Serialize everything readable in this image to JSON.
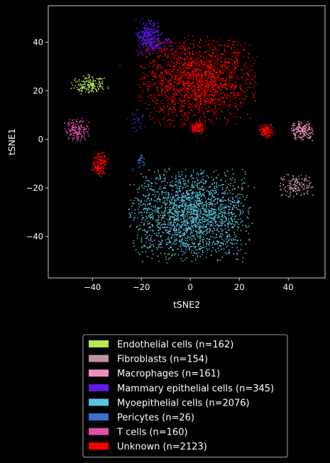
{
  "chart_data": {
    "type": "scatter",
    "title": "",
    "xlabel": "tSNE2",
    "ylabel": "tSNE1",
    "xlim": [
      -58,
      55
    ],
    "ylim": [
      -57,
      55
    ],
    "xticks": [
      -40,
      -20,
      0,
      20,
      40
    ],
    "yticks": [
      -40,
      -20,
      0,
      20,
      40
    ],
    "grid": false,
    "legend_position": "below plot",
    "background": "#000000",
    "series": [
      {
        "name": "Endothelial cells (n=162)",
        "color": "#b5e853",
        "count": 162,
        "clusters": [
          {
            "cx": -41,
            "cy": 22.5,
            "sx": 3.5,
            "sy": 1.8
          }
        ]
      },
      {
        "name": "Fibroblasts (n=154)",
        "color": "#c0949f",
        "count": 154,
        "clusters": [
          {
            "cx": 43.5,
            "cy": -19,
            "sx": 3.2,
            "sy": 2.2
          }
        ]
      },
      {
        "name": "Macrophages (n=161)",
        "color": "#ef8fbf",
        "count": 161,
        "clusters": [
          {
            "cx": 45.5,
            "cy": 3.5,
            "sx": 2.2,
            "sy": 2.0
          }
        ]
      },
      {
        "name": "Mammary epithelial cells (n=345)",
        "color": "#5d1be8",
        "count": 345,
        "clusters": [
          {
            "cx": -17,
            "cy": 42,
            "sx": 2.5,
            "sy": 3.5
          },
          {
            "cx": -22,
            "cy": 7,
            "sx": 1.8,
            "sy": 2.8
          },
          {
            "cx": -11,
            "cy": 40,
            "sx": 2.0,
            "sy": 1.5
          }
        ]
      },
      {
        "name": "Myoepithelial cells (n=2076)",
        "color": "#58c4dd",
        "count": 2076,
        "clusters": [
          {
            "cx": 0,
            "cy": -31,
            "sx": 11.5,
            "sy": 8.8
          }
        ]
      },
      {
        "name": "Pericytes (n=26)",
        "color": "#3d6ed4",
        "count": 26,
        "clusters": [
          {
            "cx": -20,
            "cy": -9,
            "sx": 0.8,
            "sy": 1.5
          }
        ]
      },
      {
        "name": "T cells (n=160)",
        "color": "#e050a8",
        "count": 160,
        "clusters": [
          {
            "cx": -46,
            "cy": 4,
            "sx": 2.4,
            "sy": 2.2
          }
        ]
      },
      {
        "name": "Unknown (n=2123)",
        "color": "#ff0000",
        "count": 2123,
        "clusters": [
          {
            "cx": 3,
            "cy": 24,
            "sx": 11,
            "sy": 8.5
          },
          {
            "cx": -37,
            "cy": -10,
            "sx": 1.5,
            "sy": 2.5
          },
          {
            "cx": 31,
            "cy": 3.5,
            "sx": 1.3,
            "sy": 1.3
          },
          {
            "cx": 3,
            "cy": 5,
            "sx": 1.5,
            "sy": 1.3
          }
        ]
      }
    ]
  }
}
